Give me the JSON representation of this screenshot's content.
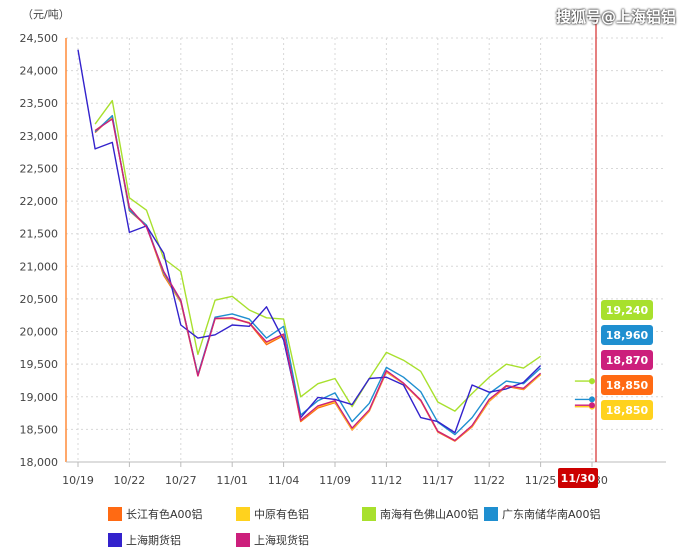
{
  "watermark": "搜狐号@上海铝铝",
  "chart_data": {
    "type": "line",
    "unit_label": "（元/吨）",
    "ylim": [
      18000,
      24500
    ],
    "yticks": [
      18000,
      18500,
      19000,
      19500,
      20000,
      20500,
      21000,
      21500,
      22000,
      22500,
      23000,
      23500,
      24000,
      24500
    ],
    "ytick_labels": [
      "18,000",
      "18,500",
      "19,000",
      "19,500",
      "20,000",
      "20,500",
      "21,000",
      "21,500",
      "22,000",
      "22,500",
      "23,000",
      "23,500",
      "24,000",
      "24,500"
    ],
    "x": [
      "10/19",
      "10/20",
      "10/21",
      "10/22",
      "10/25",
      "10/26",
      "10/27",
      "10/28",
      "10/29",
      "11/01",
      "11/02",
      "11/03",
      "11/04",
      "11/05",
      "11/08",
      "11/09",
      "11/10",
      "11/11",
      "11/12",
      "11/15",
      "11/16",
      "11/17",
      "11/18",
      "11/19",
      "11/22",
      "11/23",
      "11/24",
      "11/25",
      "11/26",
      "11/29",
      "11/30"
    ],
    "xtick_labels": [
      "10/19",
      "10/22",
      "10/27",
      "11/01",
      "11/04",
      "11/09",
      "11/12",
      "11/17",
      "11/22",
      "11/25",
      "11/30"
    ],
    "xtick_indices": [
      0,
      3,
      6,
      9,
      12,
      15,
      18,
      21,
      24,
      27,
      30
    ],
    "grid": true,
    "legend_placement": "bottom",
    "series": [
      {
        "name": "长江有色A00铝",
        "color": "#ff6a13",
        "values": [
          null,
          23050,
          23300,
          21850,
          21620,
          20860,
          20450,
          19320,
          20200,
          20200,
          20130,
          19800,
          19940,
          18620,
          18830,
          18910,
          18490,
          18780,
          19380,
          19200,
          18940,
          18460,
          18320,
          18540,
          18930,
          19160,
          19110,
          19340,
          null,
          18850,
          18850
        ]
      },
      {
        "name": "中原有色铝",
        "color": "#ffd21e",
        "values": [
          null,
          23080,
          23280,
          21870,
          21630,
          20890,
          20460,
          19340,
          20200,
          20200,
          20140,
          19830,
          19950,
          18640,
          18850,
          18920,
          18500,
          18790,
          19390,
          19200,
          18950,
          18470,
          18330,
          18550,
          18940,
          19170,
          19120,
          19340,
          null,
          18850,
          18850
        ]
      },
      {
        "name": "南海有色佛山A00铝",
        "color": "#a8e02d",
        "values": [
          null,
          23180,
          23540,
          22050,
          21860,
          21120,
          20920,
          19650,
          20480,
          20540,
          20330,
          20210,
          20190,
          19000,
          19200,
          19280,
          18850,
          19280,
          19680,
          19560,
          19390,
          18920,
          18780,
          19050,
          19300,
          19500,
          19440,
          19620,
          null,
          19240,
          19240
        ]
      },
      {
        "name": "广东南储华南A00铝",
        "color": "#1f8fd0",
        "values": [
          null,
          23060,
          23310,
          21860,
          21630,
          20900,
          20470,
          19340,
          20220,
          20270,
          20190,
          19900,
          20080,
          18720,
          18940,
          19060,
          18620,
          18900,
          19450,
          19300,
          19080,
          18610,
          18420,
          18680,
          19050,
          19240,
          19200,
          19440,
          null,
          18960,
          18960
        ]
      },
      {
        "name": "上海期货铝",
        "color": "#3322cc",
        "values": [
          24320,
          22800,
          22900,
          21520,
          21620,
          21200,
          20100,
          19900,
          19950,
          20100,
          20080,
          20380,
          19870,
          18680,
          18990,
          18960,
          18880,
          19280,
          19300,
          19180,
          18680,
          18620,
          18450,
          19180,
          19070,
          19120,
          19220,
          19480,
          null,
          null,
          null
        ]
      },
      {
        "name": "上海现货铝",
        "color": "#cc1f7c",
        "values": [
          null,
          23080,
          23260,
          21900,
          21600,
          20920,
          20480,
          19320,
          20200,
          20210,
          20130,
          19840,
          19960,
          18640,
          18860,
          18940,
          18520,
          18800,
          19400,
          19210,
          18950,
          18470,
          18330,
          18560,
          18960,
          19170,
          19130,
          19360,
          null,
          18870,
          18870
        ]
      }
    ],
    "end_labels": [
      {
        "text": "19,240",
        "color": "#a8e02d"
      },
      {
        "text": "18,960",
        "color": "#1f8fd0"
      },
      {
        "text": "18,870",
        "color": "#cc1f7c"
      },
      {
        "text": "18,850",
        "color": "#ff6a13"
      },
      {
        "text": "18,850",
        "color": "#ffd21e"
      }
    ],
    "crosshair_label": "11/30",
    "crosshair_color": "#cc0000"
  }
}
